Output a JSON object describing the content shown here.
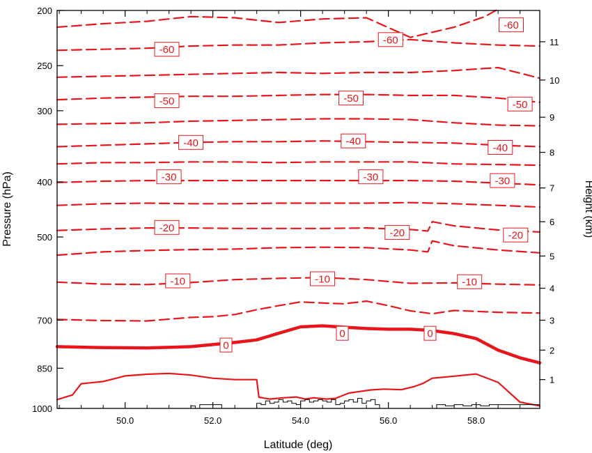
{
  "chart_data": {
    "type": "line",
    "title": "",
    "xlabel": "Latitude (deg)",
    "ylabel": "Pressure (hPa)",
    "y2label": "Height (km)",
    "xlim": [
      48.45,
      59.45
    ],
    "ylim": [
      1000,
      200
    ],
    "y_scale": "log",
    "x_ticks": [
      50,
      52,
      54,
      56,
      58
    ],
    "x_tick_labels": [
      "50.0",
      "52.0",
      "54.0",
      "56.0",
      "58.0"
    ],
    "y_ticks": [
      200,
      250,
      300,
      400,
      500,
      700,
      850,
      1000
    ],
    "y_tick_labels": [
      "200",
      "250",
      "300",
      "400",
      "500",
      "700",
      "850",
      "1000"
    ],
    "y2_ticks": [
      1,
      2,
      3,
      4,
      5,
      6,
      7,
      8,
      9,
      10,
      11
    ],
    "y2_tick_labels": [
      "1",
      "2",
      "3",
      "4",
      "5",
      "6",
      "7",
      "8",
      "9",
      "10",
      "11"
    ],
    "y2_tick_pressures": [
      890,
      790,
      700,
      615,
      540,
      470,
      410,
      355,
      308,
      265,
      227
    ],
    "line_color": "#e8151b",
    "terrain_color": "#000000",
    "contour_labels": [
      "0",
      "-10",
      "-20",
      "-30",
      "-40",
      "-50",
      "-60"
    ],
    "series": [
      {
        "level": -65,
        "style": "dashed",
        "x": [
          48.45,
          49.5,
          50.5,
          51.5,
          52.5,
          53.5,
          54.5,
          55.5,
          56.5,
          57.5,
          58.2,
          58.5
        ],
        "y": [
          214,
          211,
          209,
          205,
          206,
          210,
          207,
          206,
          223,
          214,
          205,
          199
        ]
      },
      {
        "level": -60,
        "style": "dashed",
        "x": [
          48.45,
          49.5,
          50.5,
          51.5,
          52.5,
          53.5,
          54.5,
          55.5,
          56.5,
          57.5,
          58.5,
          59.45
        ],
        "y": [
          235,
          234,
          233,
          231,
          230,
          230,
          228,
          227,
          225,
          228,
          230,
          231
        ]
      },
      {
        "level": -55,
        "style": "dashed",
        "x": [
          48.45,
          49.5,
          50.5,
          51.5,
          52.5,
          53.5,
          54.5,
          55.5,
          56.5,
          57.5,
          58.5,
          59.45
        ],
        "y": [
          262,
          261,
          260,
          259,
          258,
          257,
          258,
          257,
          257,
          255,
          252,
          263
        ]
      },
      {
        "level": -50,
        "style": "dashed",
        "x": [
          48.45,
          49.5,
          50.5,
          51.5,
          52.5,
          53.5,
          54.5,
          55.5,
          56.5,
          57.5,
          58.5,
          59.45
        ],
        "y": [
          287,
          285,
          284,
          283,
          283,
          282,
          281,
          281,
          282,
          282,
          285,
          290
        ]
      },
      {
        "level": -45,
        "style": "dashed",
        "x": [
          48.45,
          49.5,
          50.5,
          51.5,
          52.5,
          53.5,
          54.5,
          55.5,
          56.5,
          57.5,
          58.5,
          59.45
        ],
        "y": [
          317,
          316,
          315,
          313,
          312,
          311,
          310,
          310,
          311,
          315,
          318,
          319
        ]
      },
      {
        "level": -40,
        "style": "dashed",
        "x": [
          48.45,
          49.5,
          50.5,
          51.5,
          52.5,
          53.5,
          54.5,
          55.5,
          56.5,
          57.5,
          58.5,
          59.45
        ],
        "y": [
          347,
          345,
          343,
          341,
          340,
          340,
          339,
          340,
          341,
          342,
          345,
          347
        ]
      },
      {
        "level": -35,
        "style": "dashed",
        "x": [
          48.45,
          49.5,
          50.5,
          51.5,
          52.5,
          53.5,
          54.5,
          55.5,
          56.5,
          57.5,
          58.5,
          59.45
        ],
        "y": [
          372,
          370,
          370,
          369,
          369,
          370,
          369,
          369,
          369,
          372,
          373,
          374
        ]
      },
      {
        "level": -30,
        "style": "dashed",
        "x": [
          48.45,
          49.5,
          50.5,
          51.5,
          52.5,
          53.5,
          54.5,
          55.5,
          56.5,
          57.5,
          58.5,
          59.45
        ],
        "y": [
          401,
          399,
          398,
          398,
          398,
          398,
          398,
          398,
          398,
          399,
          402,
          405
        ]
      },
      {
        "level": -25,
        "style": "dashed",
        "x": [
          48.45,
          49.5,
          50.5,
          51.5,
          52.5,
          53.5,
          54.5,
          55.5,
          56.5,
          57.5,
          58.5,
          59.45
        ],
        "y": [
          440,
          437,
          436,
          437,
          437,
          436,
          436,
          436,
          435,
          437,
          440,
          443
        ]
      },
      {
        "level": -20,
        "style": "dashed",
        "x": [
          48.45,
          49.5,
          50.5,
          51.5,
          52.5,
          53.5,
          54.5,
          55.5,
          56.5,
          56.9,
          57.0,
          57.5,
          58.5,
          59.45
        ],
        "y": [
          487,
          484,
          482,
          482,
          483,
          483,
          483,
          482,
          485,
          488,
          470,
          478,
          486,
          490
        ]
      },
      {
        "level": -15,
        "style": "dashed",
        "x": [
          48.45,
          49.5,
          50.5,
          51.5,
          52.5,
          53.5,
          54.5,
          55.5,
          56.5,
          56.9,
          57.0,
          57.5,
          58.5,
          59.45
        ],
        "y": [
          538,
          531,
          528,
          526,
          525,
          522,
          521,
          522,
          527,
          531,
          508,
          518,
          527,
          533
        ]
      },
      {
        "level": -10,
        "style": "dashed",
        "x": [
          48.45,
          49.5,
          50.5,
          51.5,
          52.5,
          53.5,
          54.5,
          55.5,
          56.5,
          57.5,
          58.5,
          59.45
        ],
        "y": [
          600,
          605,
          606,
          601,
          594,
          591,
          589,
          594,
          603,
          602,
          605,
          607
        ]
      },
      {
        "level": -5,
        "style": "dashed",
        "x": [
          48.45,
          49.5,
          50.5,
          51.5,
          52.0,
          52.5,
          53.0,
          53.5,
          54.0,
          54.5,
          55.0,
          55.5,
          56.0,
          56.5,
          57.0,
          57.5,
          58.5,
          59.45
        ],
        "y": [
          698,
          701,
          702,
          692,
          690,
          684,
          671,
          660,
          650,
          653,
          655,
          648,
          660,
          674,
          682,
          673,
          678,
          680
        ]
      },
      {
        "level": 0,
        "style": "bold",
        "x": [
          48.45,
          49.5,
          50.5,
          51.5,
          52.5,
          53.0,
          53.5,
          54.0,
          54.5,
          55.0,
          55.5,
          56.0,
          56.5,
          57.0,
          57.5,
          58.0,
          58.5,
          59.0,
          59.45
        ],
        "y": [
          779,
          782,
          783,
          779,
          766,
          758,
          738,
          719,
          716,
          720,
          724,
          726,
          726,
          730,
          739,
          754,
          790,
          815,
          832
        ]
      },
      {
        "level": 5,
        "style": "solid",
        "x": [
          48.45,
          48.8,
          49.0,
          49.5,
          50.0,
          50.5,
          51.0,
          51.5,
          52.0,
          52.5,
          53.0,
          53.05,
          53.3,
          53.6,
          53.9,
          54.1,
          54.3,
          54.6,
          54.8,
          55.1,
          55.3,
          55.6,
          55.9,
          56.3,
          56.6,
          56.8,
          57.0,
          57.5,
          58.0,
          58.5,
          59.0,
          59.45
        ],
        "y": [
          965,
          947,
          905,
          897,
          877,
          871,
          868,
          874,
          885,
          890,
          890,
          956,
          963,
          958,
          955,
          963,
          958,
          963,
          960,
          940,
          935,
          928,
          925,
          927,
          915,
          903,
          885,
          878,
          870,
          900,
          975,
          990
        ]
      }
    ],
    "label_positions": [
      {
        "text": "0",
        "x": 52.3,
        "y": 774
      },
      {
        "text": "0",
        "x": 54.95,
        "y": 738
      },
      {
        "text": "0",
        "x": 56.95,
        "y": 738
      },
      {
        "text": "-10",
        "x": 51.2,
        "y": 597
      },
      {
        "text": "-10",
        "x": 54.5,
        "y": 592
      },
      {
        "text": "-10",
        "x": 57.85,
        "y": 599
      },
      {
        "text": "-20",
        "x": 50.95,
        "y": 481
      },
      {
        "text": "-20",
        "x": 56.2,
        "y": 491
      },
      {
        "text": "-20",
        "x": 58.9,
        "y": 496
      },
      {
        "text": "-30",
        "x": 51.0,
        "y": 392
      },
      {
        "text": "-30",
        "x": 55.6,
        "y": 392
      },
      {
        "text": "-30",
        "x": 58.6,
        "y": 398
      },
      {
        "text": "-40",
        "x": 51.5,
        "y": 341
      },
      {
        "text": "-40",
        "x": 55.2,
        "y": 339
      },
      {
        "text": "-40",
        "x": 58.55,
        "y": 348
      },
      {
        "text": "-50",
        "x": 50.95,
        "y": 288
      },
      {
        "text": "-50",
        "x": 55.15,
        "y": 285
      },
      {
        "text": "-50",
        "x": 59.0,
        "y": 292
      },
      {
        "text": "-60",
        "x": 50.95,
        "y": 234
      },
      {
        "text": "-60",
        "x": 56.05,
        "y": 225
      },
      {
        "text": "-60",
        "x": 58.8,
        "y": 212
      }
    ],
    "terrain": {
      "x": [
        48.45,
        51.4,
        51.5,
        51.6,
        51.7,
        51.8,
        52.0,
        52.2,
        52.4,
        52.6,
        52.8,
        53.0,
        53.1,
        53.2,
        53.3,
        53.4,
        53.5,
        53.6,
        53.7,
        53.8,
        53.9,
        54.0,
        54.1,
        54.2,
        54.3,
        54.4,
        54.5,
        54.6,
        54.7,
        54.8,
        54.9,
        55.0,
        55.1,
        55.2,
        55.3,
        55.4,
        55.5,
        55.6,
        55.7,
        55.8,
        56.0,
        56.5,
        56.9,
        57.1,
        57.3,
        57.5,
        57.7,
        57.9,
        58.1,
        58.3,
        59.45
      ],
      "y": [
        1000,
        1000,
        990,
        1000,
        985,
        985,
        985,
        1000,
        1000,
        1000,
        1000,
        980,
        985,
        970,
        980,
        975,
        965,
        975,
        970,
        980,
        985,
        970,
        965,
        975,
        970,
        965,
        970,
        975,
        965,
        985,
        980,
        970,
        965,
        975,
        960,
        980,
        970,
        965,
        985,
        1000,
        1000,
        1000,
        1000,
        985,
        990,
        985,
        990,
        985,
        990,
        985,
        985
      ]
    }
  }
}
